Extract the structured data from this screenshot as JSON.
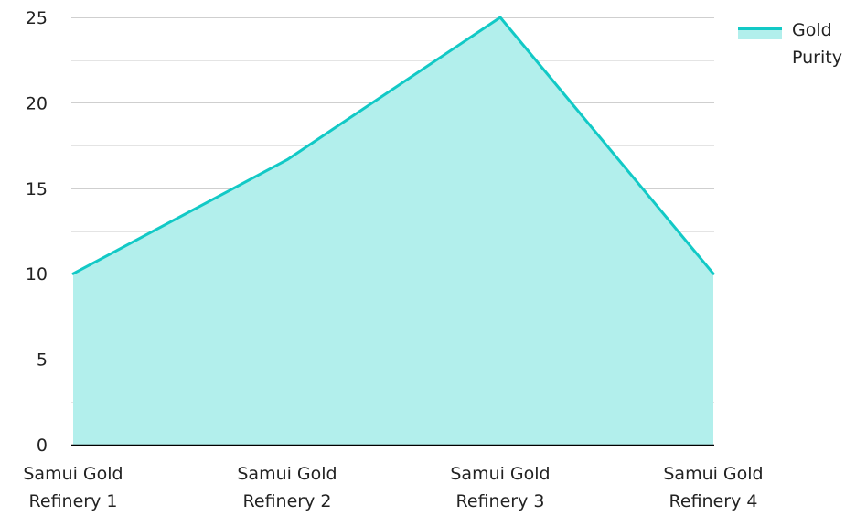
{
  "chart_data": {
    "type": "area",
    "categories": [
      "Samui Gold Refinery 1",
      "Samui Gold Refinery 2",
      "Samui Gold Refinery 3",
      "Samui Gold Refinery 4"
    ],
    "category_lines": [
      [
        "Samui Gold",
        "Refinery 1"
      ],
      [
        "Samui Gold",
        "Refinery 2"
      ],
      [
        "Samui Gold",
        "Refinery 3"
      ],
      [
        "Samui Gold",
        "Refinery 4"
      ]
    ],
    "series": [
      {
        "name": "Gold Purity",
        "values": [
          10,
          16.67,
          25,
          10
        ]
      }
    ],
    "legend_lines": [
      "Gold",
      "Purity"
    ],
    "ylim": [
      0,
      25
    ],
    "yticks": [
      0,
      5,
      10,
      15,
      20,
      25
    ],
    "grid": true,
    "legend_position": "top-right",
    "colors": {
      "line": "#12C9C6",
      "fill": "#B2EFEC",
      "grid": "#CFCFCF",
      "axis": "#000000"
    }
  }
}
